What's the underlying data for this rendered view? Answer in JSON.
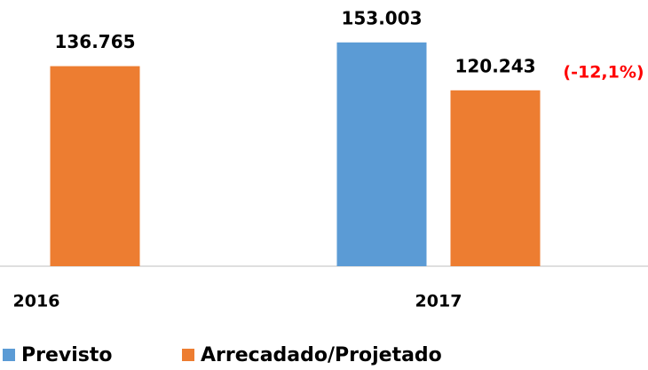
{
  "chart_data": {
    "type": "bar",
    "categories": [
      "2016",
      "2017"
    ],
    "series": [
      {
        "name": "Previsto",
        "color": "#5b9bd5",
        "values": [
          null,
          153003
        ],
        "value_labels": [
          null,
          "153.003"
        ]
      },
      {
        "name": "Arrecadado/Projetado",
        "color": "#ed7d31",
        "values": [
          136765,
          120243
        ],
        "value_labels": [
          "136.765",
          "120.243"
        ]
      }
    ],
    "annotations": [
      "(-12,1%)"
    ],
    "ylim": [
      0,
      182000
    ]
  }
}
